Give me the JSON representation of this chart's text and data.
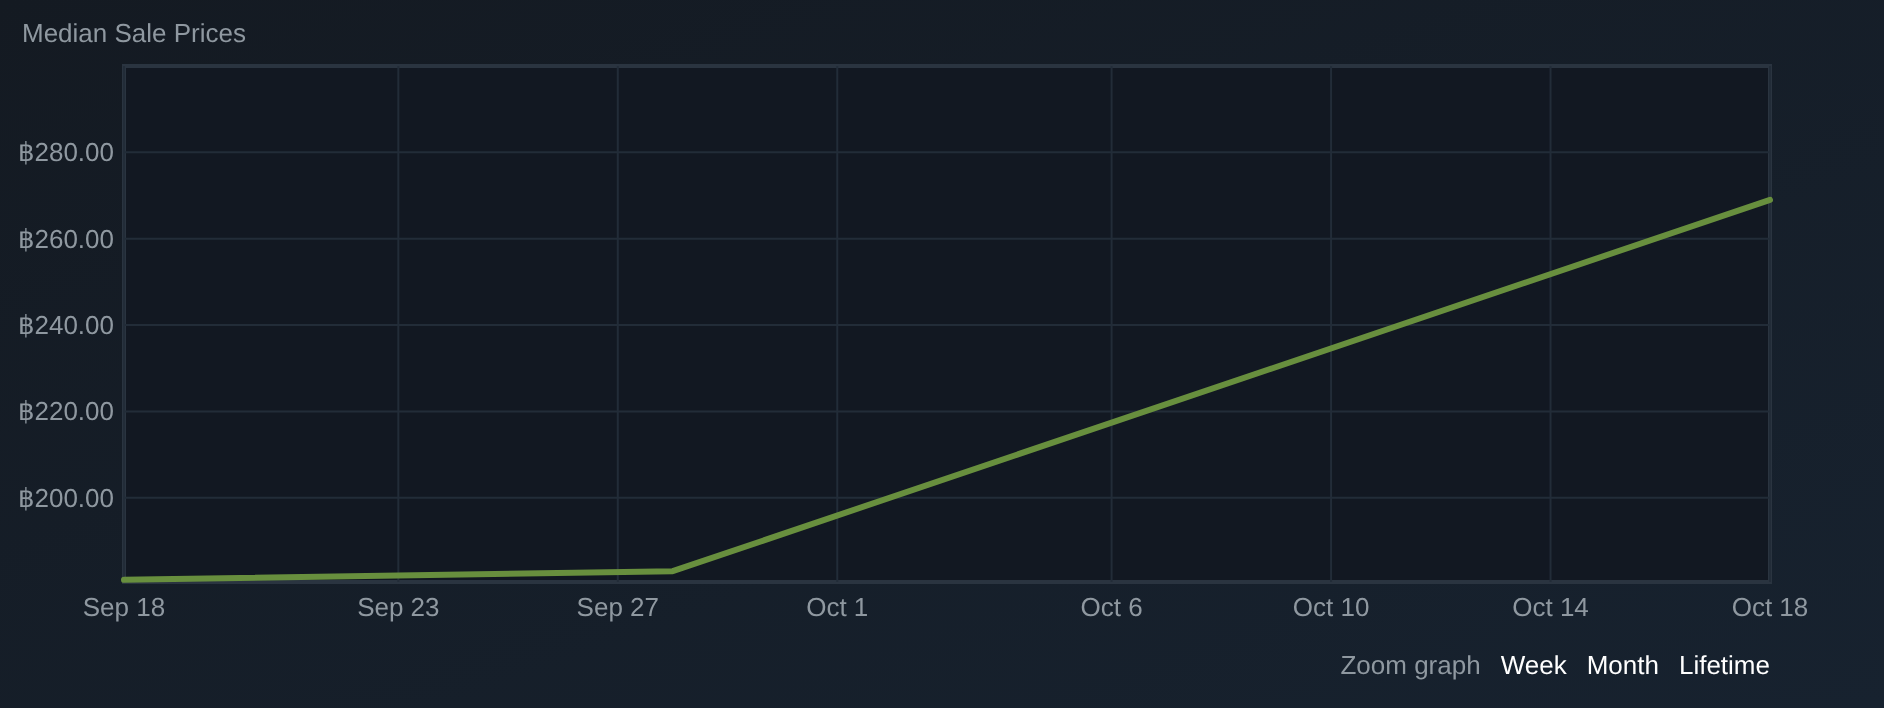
{
  "chart_data": {
    "type": "line",
    "title": "Median Sale Prices",
    "x": [
      "--09-18",
      "--09-28",
      "--10-18"
    ],
    "series": [
      {
        "color": "#688f3e",
        "values": [
          181,
          183,
          269
        ]
      }
    ],
    "xlim": [
      "--09-18",
      "--10-18"
    ],
    "xticks": [
      {
        "value": "--09-18",
        "label": "Sep 18"
      },
      {
        "value": "--09-23",
        "label": "Sep 23"
      },
      {
        "value": "--09-27",
        "label": "Sep 27"
      },
      {
        "value": "--10-01",
        "label": "Oct 1"
      },
      {
        "value": "--10-06",
        "label": "Oct 6"
      },
      {
        "value": "--10-10",
        "label": "Oct 10"
      },
      {
        "value": "--10-14",
        "label": "Oct 14"
      },
      {
        "value": "--10-18",
        "label": "Oct 18"
      }
    ],
    "ylim": [
      180.5,
      300
    ],
    "yticks": [
      {
        "value": 200,
        "label": "฿200.00"
      },
      {
        "value": 220,
        "label": "฿220.00"
      },
      {
        "value": 240,
        "label": "฿240.00"
      },
      {
        "value": 260,
        "label": "฿260.00"
      },
      {
        "value": 280,
        "label": "฿280.00"
      }
    ],
    "grid": true,
    "marker": "none",
    "line_style": "solid",
    "annotations": [
      "Zoom graph",
      "Week",
      "Month",
      "Lifetime"
    ]
  }
}
